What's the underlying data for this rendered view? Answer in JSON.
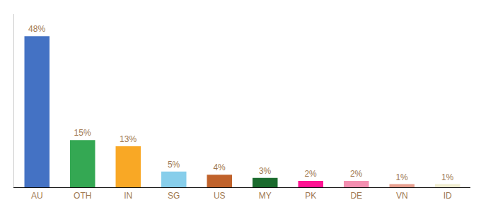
{
  "chart_data": {
    "type": "bar",
    "categories": [
      "AU",
      "OTH",
      "IN",
      "SG",
      "US",
      "MY",
      "PK",
      "DE",
      "VN",
      "ID"
    ],
    "values": [
      48,
      15,
      13,
      5,
      4,
      3,
      2,
      2,
      1,
      1
    ],
    "value_labels": [
      "48%",
      "15%",
      "13%",
      "5%",
      "4%",
      "3%",
      "2%",
      "2%",
      "1%",
      "1%"
    ],
    "data_labels": true,
    "colors": [
      "#4472C4",
      "#34A853",
      "#F9A825",
      "#87CEEB",
      "#C0622B",
      "#1B6B2E",
      "#FF1493",
      "#F48FB1",
      "#E8A090",
      "#F0EDD0"
    ],
    "ylim": [
      0,
      55
    ],
    "tick_labels": "x",
    "grid": false
  }
}
